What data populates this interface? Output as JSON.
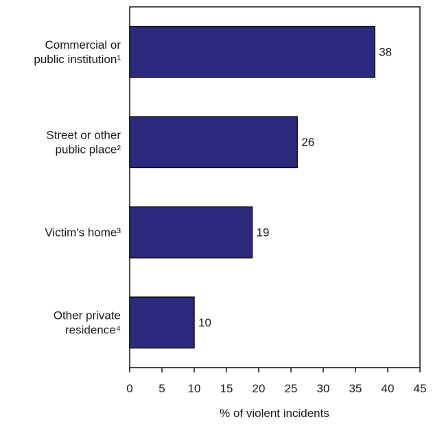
{
  "chart_data": {
    "type": "bar",
    "orientation": "horizontal",
    "categories": [
      [
        "Commercial or",
        "public institution¹"
      ],
      [
        "Street or other",
        "public place²"
      ],
      [
        "Victim's home³"
      ],
      [
        "Other private",
        "residence⁴"
      ]
    ],
    "values": [
      38,
      26,
      19,
      10
    ],
    "data_labels": [
      "38",
      "26",
      "19",
      "10"
    ],
    "xlabel": "% of violent incidents",
    "ylabel": "",
    "title": "",
    "xlim": [
      0,
      45
    ],
    "xticks": [
      0,
      5,
      10,
      15,
      20,
      25,
      30,
      35,
      40,
      45
    ],
    "bar_color": "#2b2a7f",
    "bar_edge_color": "#111111",
    "grid": false,
    "legend": "none"
  }
}
